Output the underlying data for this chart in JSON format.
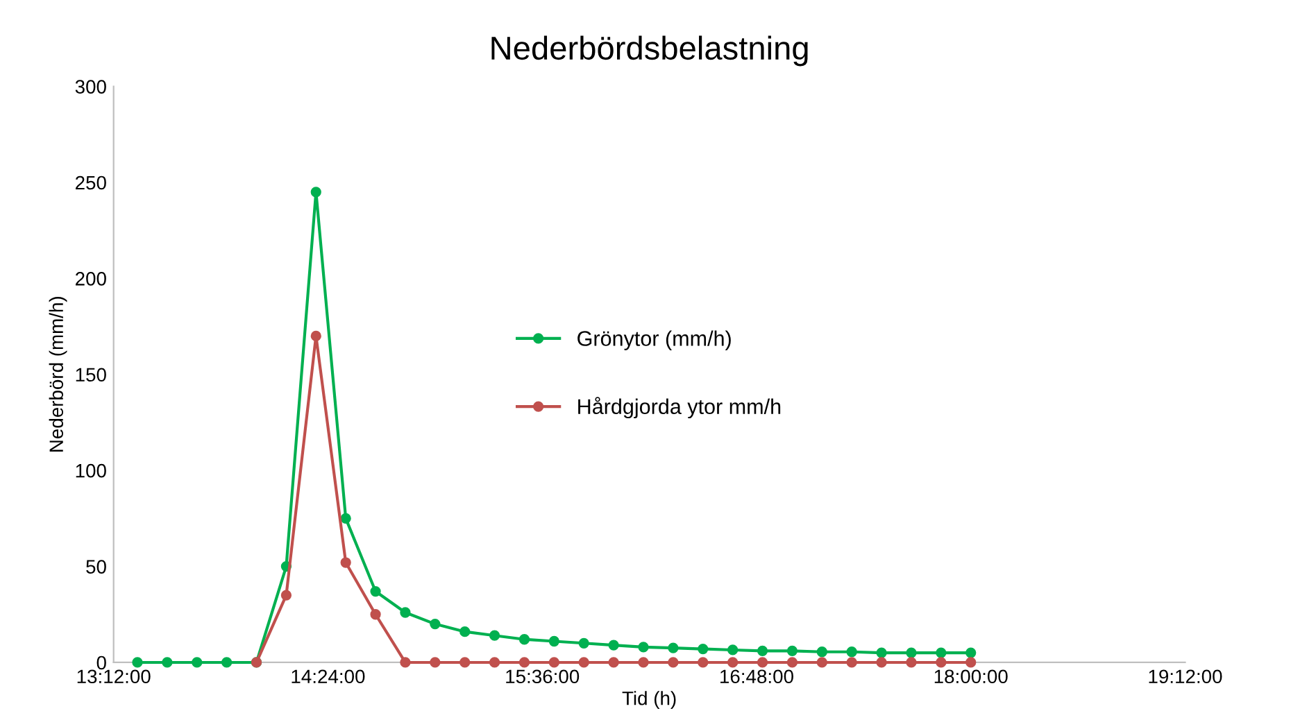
{
  "chart_data": {
    "type": "line",
    "title": "Nederbördsbelastning",
    "xlabel": "Tid (h)",
    "ylabel": "Nederbörd (mm/h)",
    "x": [
      13.3333,
      13.5,
      13.6667,
      13.8333,
      14.0,
      14.1667,
      14.3333,
      14.5,
      14.6667,
      14.8333,
      15.0,
      15.1667,
      15.3333,
      15.5,
      15.6667,
      15.8333,
      16.0,
      16.1667,
      16.3333,
      16.5,
      16.6667,
      16.8333,
      17.0,
      17.1667,
      17.3333,
      17.5,
      17.6667,
      17.8333,
      18.0
    ],
    "series": [
      {
        "name": "Grönytor (mm/h)",
        "color": "#00b050",
        "values": [
          0,
          0,
          0,
          0,
          0,
          50,
          245,
          75,
          37,
          26,
          20,
          16,
          14,
          12,
          11,
          10,
          9,
          8,
          7.5,
          7,
          6.5,
          6,
          6,
          5.5,
          5.5,
          5,
          5,
          5,
          5
        ]
      },
      {
        "name": "Hårdgjorda ytor mm/h",
        "color": "#c0504d",
        "values": [
          null,
          null,
          null,
          null,
          0,
          35,
          170,
          52,
          25,
          0,
          0,
          0,
          0,
          0,
          0,
          0,
          0,
          0,
          0,
          0,
          0,
          0,
          0,
          0,
          0,
          0,
          0,
          0,
          0
        ]
      }
    ],
    "xlim": [
      13.2,
      19.2
    ],
    "xticks": [
      {
        "value": 13.2,
        "label": "13:12:00"
      },
      {
        "value": 14.4,
        "label": "14:24:00"
      },
      {
        "value": 15.6,
        "label": "15:36:00"
      },
      {
        "value": 16.8,
        "label": "16:48:00"
      },
      {
        "value": 18.0,
        "label": "18:00:00"
      },
      {
        "value": 19.2,
        "label": "19:12:00"
      }
    ],
    "ylim": [
      0,
      300
    ],
    "yticks": [
      0,
      50,
      100,
      150,
      200,
      250,
      300
    ],
    "grid": false,
    "legend": "center",
    "marker": "circle",
    "line_style": "solid"
  }
}
